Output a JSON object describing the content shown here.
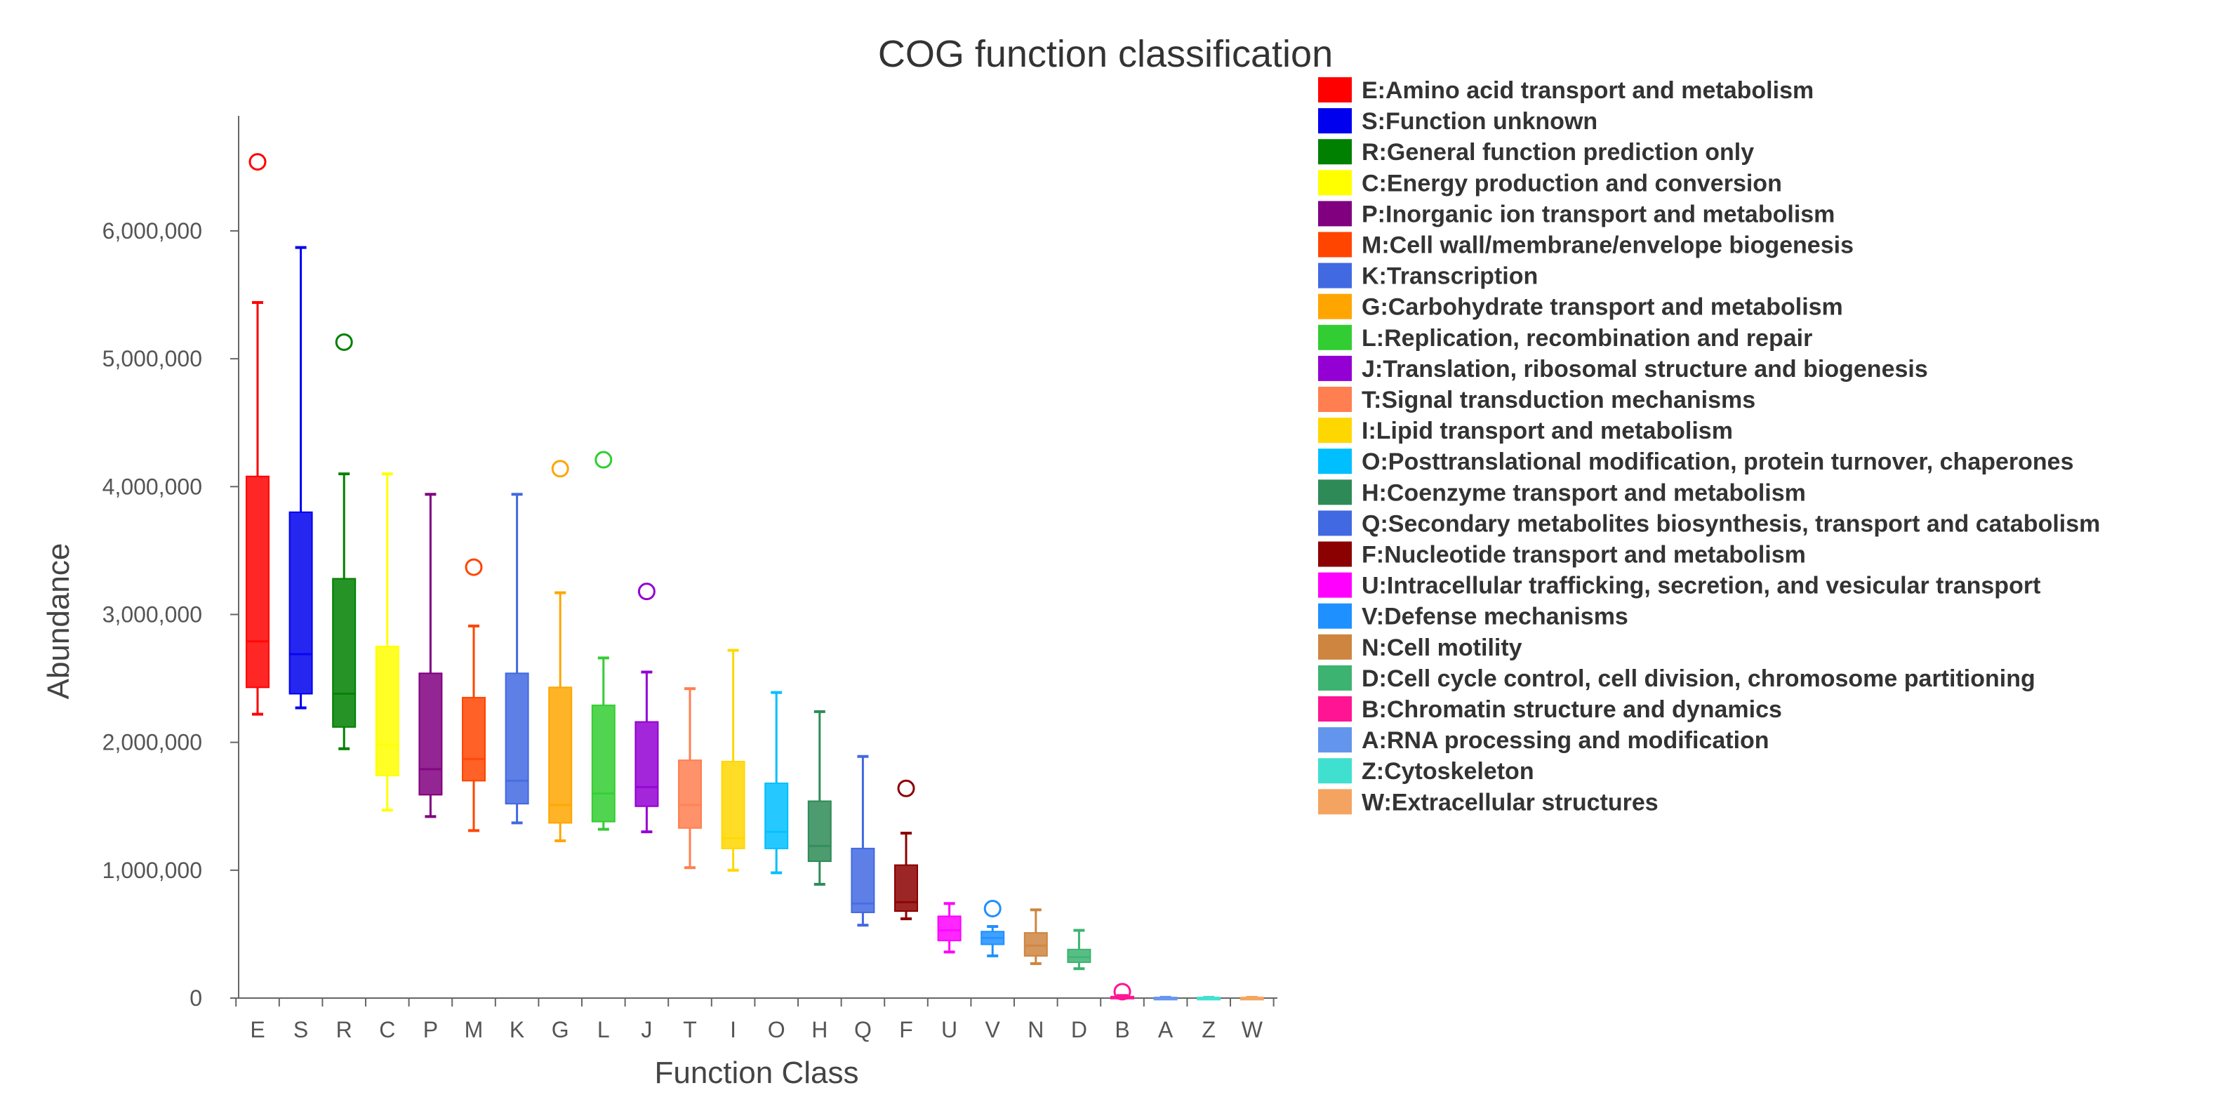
{
  "chart_data": {
    "type": "boxplot",
    "title": "COG function classification",
    "xlabel": "Function Class",
    "ylabel": "Abundance",
    "ylim": [
      0,
      6900000
    ],
    "yticks": [
      0,
      1000000,
      2000000,
      3000000,
      4000000,
      5000000,
      6000000
    ],
    "ytick_labels": [
      "0",
      "1,000,000",
      "2,000,000",
      "3,000,000",
      "4,000,000",
      "5,000,000",
      "6,000,000"
    ],
    "grid": false,
    "legend_position": "right",
    "categories": [
      "E",
      "S",
      "R",
      "C",
      "P",
      "M",
      "K",
      "G",
      "L",
      "J",
      "T",
      "I",
      "O",
      "H",
      "Q",
      "F",
      "U",
      "V",
      "N",
      "D",
      "B",
      "A",
      "Z",
      "W"
    ],
    "series": [
      {
        "code": "E",
        "label": "E:Amino acid transport and metabolism",
        "color": "#FF0000",
        "min": 2220000,
        "q1": 2430000,
        "median": 2790000,
        "q3": 4080000,
        "max": 5440000,
        "outliers": [
          6540000
        ]
      },
      {
        "code": "S",
        "label": "S:Function unknown",
        "color": "#0000EE",
        "min": 2270000,
        "q1": 2380000,
        "median": 2690000,
        "q3": 3800000,
        "max": 5870000,
        "outliers": []
      },
      {
        "code": "R",
        "label": "R:General function prediction only",
        "color": "#008000",
        "min": 1950000,
        "q1": 2120000,
        "median": 2380000,
        "q3": 3280000,
        "max": 4100000,
        "outliers": [
          5130000
        ]
      },
      {
        "code": "C",
        "label": "C:Energy production and conversion",
        "color": "#FFFF00",
        "min": 1470000,
        "q1": 1740000,
        "median": 1980000,
        "q3": 2750000,
        "max": 4100000,
        "outliers": []
      },
      {
        "code": "P",
        "label": "P:Inorganic ion transport and metabolism",
        "color": "#800080",
        "min": 1420000,
        "q1": 1590000,
        "median": 1790000,
        "q3": 2540000,
        "max": 3940000,
        "outliers": []
      },
      {
        "code": "M",
        "label": "M:Cell wall/membrane/envelope biogenesis",
        "color": "#FF4500",
        "min": 1310000,
        "q1": 1700000,
        "median": 1870000,
        "q3": 2350000,
        "max": 2910000,
        "outliers": [
          3370000
        ]
      },
      {
        "code": "K",
        "label": "K:Transcription",
        "color": "#4169E1",
        "min": 1370000,
        "q1": 1520000,
        "median": 1700000,
        "q3": 2540000,
        "max": 3940000,
        "outliers": []
      },
      {
        "code": "G",
        "label": "G:Carbohydrate transport and metabolism",
        "color": "#FFA500",
        "min": 1230000,
        "q1": 1370000,
        "median": 1510000,
        "q3": 2430000,
        "max": 3170000,
        "outliers": [
          4140000
        ]
      },
      {
        "code": "L",
        "label": "L:Replication, recombination and repair",
        "color": "#32CD32",
        "min": 1320000,
        "q1": 1380000,
        "median": 1600000,
        "q3": 2290000,
        "max": 2660000,
        "outliers": [
          4210000
        ]
      },
      {
        "code": "J",
        "label": "J:Translation, ribosomal structure and biogenesis",
        "color": "#9400D3",
        "min": 1300000,
        "q1": 1500000,
        "median": 1650000,
        "q3": 2160000,
        "max": 2550000,
        "outliers": [
          3180000
        ]
      },
      {
        "code": "T",
        "label": "T:Signal transduction mechanisms",
        "color": "#FF7F50",
        "min": 1020000,
        "q1": 1330000,
        "median": 1510000,
        "q3": 1860000,
        "max": 2420000,
        "outliers": []
      },
      {
        "code": "I",
        "label": "I:Lipid transport and metabolism",
        "color": "#FFD700",
        "min": 1000000,
        "q1": 1170000,
        "median": 1250000,
        "q3": 1850000,
        "max": 2720000,
        "outliers": []
      },
      {
        "code": "O",
        "label": "O:Posttranslational modification, protein turnover, chaperones",
        "color": "#00BFFF",
        "min": 980000,
        "q1": 1170000,
        "median": 1300000,
        "q3": 1680000,
        "max": 2390000,
        "outliers": []
      },
      {
        "code": "H",
        "label": "H:Coenzyme transport and metabolism",
        "color": "#2E8B57",
        "min": 890000,
        "q1": 1070000,
        "median": 1190000,
        "q3": 1540000,
        "max": 2240000,
        "outliers": []
      },
      {
        "code": "Q",
        "label": "Q:Secondary metabolites biosynthesis, transport and catabolism",
        "color": "#4169E1",
        "min": 570000,
        "q1": 670000,
        "median": 740000,
        "q3": 1170000,
        "max": 1890000,
        "outliers": []
      },
      {
        "code": "F",
        "label": "F:Nucleotide transport and metabolism",
        "color": "#8B0000",
        "min": 620000,
        "q1": 680000,
        "median": 750000,
        "q3": 1040000,
        "max": 1290000,
        "outliers": [
          1640000
        ]
      },
      {
        "code": "U",
        "label": "U:Intracellular trafficking, secretion, and vesicular transport",
        "color": "#FF00FF",
        "min": 360000,
        "q1": 450000,
        "median": 530000,
        "q3": 640000,
        "max": 740000,
        "outliers": []
      },
      {
        "code": "V",
        "label": "V:Defense mechanisms",
        "color": "#1E90FF",
        "min": 330000,
        "q1": 420000,
        "median": 470000,
        "q3": 520000,
        "max": 560000,
        "outliers": [
          700000
        ]
      },
      {
        "code": "N",
        "label": "N:Cell motility",
        "color": "#CD853F",
        "min": 270000,
        "q1": 330000,
        "median": 410000,
        "q3": 510000,
        "max": 690000,
        "outliers": []
      },
      {
        "code": "D",
        "label": "D:Cell cycle control, cell division, chromosome partitioning",
        "color": "#3CB371",
        "min": 230000,
        "q1": 280000,
        "median": 320000,
        "q3": 380000,
        "max": 530000,
        "outliers": []
      },
      {
        "code": "B",
        "label": "B:Chromatin structure and dynamics",
        "color": "#FF1493",
        "min": 0,
        "q1": 5000,
        "median": 8000,
        "q3": 12000,
        "max": 20000,
        "outliers": [
          50000
        ]
      },
      {
        "code": "A",
        "label": "A:RNA processing and modification",
        "color": "#6495ED",
        "min": 0,
        "q1": 0,
        "median": 2000,
        "q3": 4000,
        "max": 6000,
        "outliers": []
      },
      {
        "code": "Z",
        "label": "Z:Cytoskeleton",
        "color": "#40E0D0",
        "min": 0,
        "q1": 0,
        "median": 2000,
        "q3": 4000,
        "max": 6000,
        "outliers": []
      },
      {
        "code": "W",
        "label": "W:Extracellular structures",
        "color": "#F4A460",
        "min": 0,
        "q1": 0,
        "median": 2000,
        "q3": 4000,
        "max": 6000,
        "outliers": []
      }
    ]
  }
}
